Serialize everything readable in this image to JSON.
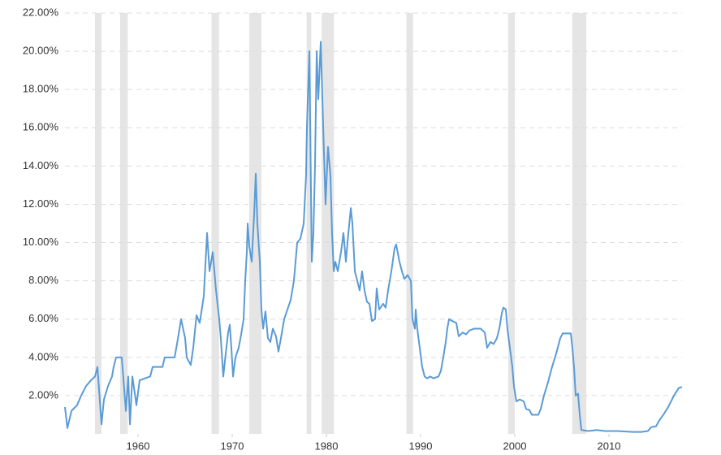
{
  "chart_data": {
    "type": "line",
    "color": "#5b9bd5",
    "recession_color": "#e5e5e5",
    "grid": true,
    "xlim": [
      1952.24,
      2017.76
    ],
    "xticks": [
      1960,
      1970,
      1980,
      1990,
      2000,
      2010
    ],
    "ylim": [
      0,
      22
    ],
    "yticks": [
      {
        "value": 2,
        "label": "2.00%"
      },
      {
        "value": 4,
        "label": "4.00%"
      },
      {
        "value": 6,
        "label": "6.00%"
      },
      {
        "value": 8,
        "label": "8.00%"
      },
      {
        "value": 10,
        "label": "10.00%"
      },
      {
        "value": 12,
        "label": "12.00%"
      },
      {
        "value": 14,
        "label": "14.00%"
      },
      {
        "value": 16,
        "label": "16.00%"
      },
      {
        "value": 18,
        "label": "18.00%"
      },
      {
        "value": 20,
        "label": "20.00%"
      },
      {
        "value": 22,
        "label": "22.00%"
      }
    ],
    "recessions": [
      [
        1955.43,
        1956.12
      ],
      [
        1958.1,
        1958.9
      ],
      [
        1967.8,
        1968.6
      ],
      [
        1971.8,
        1973.1
      ],
      [
        1977.9,
        1978.4
      ],
      [
        1979.5,
        1980.8
      ],
      [
        1988.5,
        1989.2
      ],
      [
        1999.3,
        2000.0
      ],
      [
        2006.1,
        2007.6
      ]
    ],
    "x": [
      1952.24,
      1952.5,
      1952.93,
      1953.53,
      1953.96,
      1954.48,
      1955.0,
      1955.43,
      1955.69,
      1956.12,
      1956.38,
      1956.81,
      1957.24,
      1957.41,
      1957.67,
      1958.27,
      1958.71,
      1958.96,
      1959.14,
      1959.4,
      1959.83,
      1960.17,
      1961.29,
      1961.55,
      1962.59,
      1962.84,
      1963.88,
      1964.14,
      1964.57,
      1965.0,
      1965.17,
      1965.6,
      1965.86,
      1966.21,
      1966.55,
      1966.98,
      1967.33,
      1967.59,
      1967.93,
      1968.28,
      1968.62,
      1968.79,
      1969.05,
      1969.31,
      1969.57,
      1969.74,
      1969.91,
      1970.09,
      1970.34,
      1970.69,
      1970.95,
      1971.21,
      1971.38,
      1971.55,
      1971.64,
      1971.81,
      1972.07,
      1972.33,
      1972.5,
      1972.67,
      1972.93,
      1973.1,
      1973.28,
      1973.53,
      1973.79,
      1974.05,
      1974.31,
      1974.65,
      1974.91,
      1975.17,
      1975.52,
      1975.86,
      1976.21,
      1976.55,
      1976.9,
      1977.24,
      1977.59,
      1977.84,
      1977.93,
      1978.19,
      1978.45,
      1978.62,
      1978.79,
      1978.97,
      1979.14,
      1979.4,
      1979.66,
      1979.91,
      1980.17,
      1980.43,
      1980.6,
      1980.78,
      1980.95,
      1981.21,
      1981.55,
      1981.81,
      1982.07,
      1982.24,
      1982.59,
      1982.76,
      1983.02,
      1983.28,
      1983.53,
      1983.79,
      1984.05,
      1984.31,
      1984.57,
      1984.83,
      1985.17,
      1985.34,
      1985.6,
      1986.03,
      1986.29,
      1986.55,
      1986.9,
      1987.24,
      1987.41,
      1987.76,
      1988.02,
      1988.28,
      1988.62,
      1988.97,
      1989.14,
      1989.4,
      1989.48,
      1989.65,
      1989.91,
      1990.17,
      1990.43,
      1990.69,
      1991.03,
      1991.38,
      1991.9,
      1992.16,
      1992.41,
      1992.67,
      1992.84,
      1993.02,
      1993.36,
      1993.79,
      1994.05,
      1994.48,
      1994.83,
      1995.17,
      1995.69,
      1996.03,
      1996.38,
      1996.81,
      1997.07,
      1997.41,
      1997.76,
      1998.1,
      1998.36,
      1998.62,
      1998.79,
      1999.05,
      1999.22,
      1999.48,
      1999.74,
      1999.91,
      2000.17,
      2000.52,
      2000.95,
      2001.21,
      2001.55,
      2001.81,
      2002.5,
      2002.76,
      2003.1,
      2003.53,
      2003.96,
      2004.4,
      2004.83,
      2005.09,
      2005.69,
      2005.95,
      2006.12,
      2006.29,
      2006.47,
      2006.72,
      2006.9,
      2007.07,
      2007.84,
      2008.71,
      2009.57,
      2010.86,
      2012.59,
      2013.45,
      2014.14,
      2014.48,
      2015.0,
      2015.34,
      2015.78,
      2016.29,
      2016.9,
      2017.41,
      2017.76
    ],
    "values": [
      1.4,
      0.3,
      1.2,
      1.5,
      2.0,
      2.5,
      2.8,
      3.0,
      3.5,
      0.5,
      1.8,
      2.5,
      3.0,
      3.5,
      4.0,
      4.0,
      1.2,
      3.0,
      0.5,
      3.0,
      1.5,
      2.8,
      3.0,
      3.5,
      3.5,
      4.0,
      4.0,
      4.7,
      6.0,
      5.0,
      4.0,
      3.6,
      4.5,
      6.2,
      5.8,
      7.2,
      10.5,
      8.5,
      9.5,
      7.5,
      6.0,
      5.0,
      3.0,
      4.2,
      5.3,
      5.7,
      4.5,
      3.0,
      4.0,
      4.5,
      5.2,
      6.0,
      8.0,
      9.5,
      11.0,
      9.8,
      9.0,
      11.5,
      13.6,
      11.0,
      9.0,
      6.5,
      5.5,
      6.4,
      5.0,
      4.8,
      5.5,
      5.1,
      4.3,
      5.0,
      6.0,
      6.5,
      7.0,
      8.0,
      10.0,
      10.2,
      11.0,
      13.5,
      16.0,
      20.0,
      9.0,
      10.5,
      14.0,
      20.0,
      17.5,
      20.5,
      16.0,
      12.0,
      15.0,
      13.5,
      10.5,
      8.5,
      9.0,
      8.5,
      9.5,
      10.5,
      9.0,
      10.0,
      11.8,
      11.0,
      8.5,
      8.0,
      7.5,
      8.5,
      7.5,
      6.9,
      6.8,
      5.9,
      6.0,
      7.6,
      6.5,
      6.8,
      6.6,
      7.5,
      8.5,
      9.7,
      9.9,
      9.0,
      8.5,
      8.1,
      8.3,
      8.0,
      6.0,
      5.5,
      6.5,
      5.5,
      4.5,
      3.5,
      3.0,
      2.9,
      3.0,
      2.9,
      3.0,
      3.3,
      4.0,
      4.8,
      5.5,
      6.0,
      5.9,
      5.8,
      5.1,
      5.3,
      5.2,
      5.4,
      5.5,
      5.5,
      5.5,
      5.3,
      4.5,
      4.8,
      4.7,
      5.0,
      5.5,
      6.3,
      6.6,
      6.5,
      5.5,
      4.5,
      3.5,
      2.5,
      1.7,
      1.8,
      1.7,
      1.3,
      1.25,
      1.0,
      1.0,
      1.3,
      2.0,
      2.7,
      3.5,
      4.2,
      5.0,
      5.25,
      5.25,
      5.25,
      4.5,
      3.5,
      2.0,
      2.1,
      1.0,
      0.2,
      0.15,
      0.2,
      0.15,
      0.15,
      0.1,
      0.1,
      0.15,
      0.35,
      0.4,
      0.7,
      1.0,
      1.4,
      2.0,
      2.4,
      2.45
    ]
  }
}
